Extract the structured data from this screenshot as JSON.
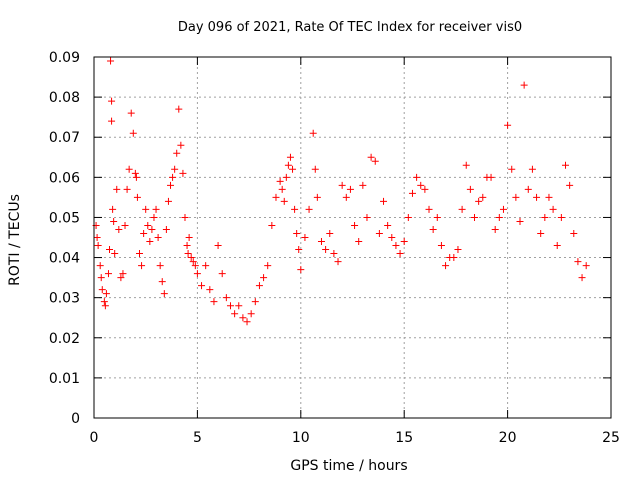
{
  "chart_data": {
    "type": "scatter",
    "title": "Day 096 of 2021, Rate Of TEC Index for receiver vis0",
    "xlabel": "GPS time / hours",
    "ylabel": "ROTI / TECUs",
    "xlim": [
      0,
      24
    ],
    "ylim": [
      0,
      0.09
    ],
    "x_ticks": [
      0,
      5,
      10,
      15,
      20,
      25
    ],
    "x_tick_labels": [
      "0",
      "5",
      "10",
      "15",
      "20",
      "25"
    ],
    "y_ticks": [
      0,
      0.01,
      0.02,
      0.03,
      0.04,
      0.05,
      0.06,
      0.07,
      0.08,
      0.09
    ],
    "y_tick_labels": [
      "0",
      "0.01",
      "0.02",
      "0.03",
      "0.04",
      "0.05",
      "0.06",
      "0.07",
      "0.08",
      "0.09"
    ],
    "grid": true,
    "marker": "+",
    "color": "#ff0000",
    "series": [
      {
        "x": [
          0.1,
          0.15,
          0.2,
          0.3,
          0.35,
          0.4,
          0.5,
          0.55,
          0.6,
          0.7,
          0.75,
          0.8,
          0.85,
          0.85,
          0.9,
          0.95,
          1.0,
          1.1,
          1.2,
          1.3,
          1.4,
          1.5,
          1.6,
          1.7,
          1.8,
          1.9,
          2.0,
          2.05,
          2.1,
          2.2,
          2.3,
          2.4,
          2.5,
          2.6,
          2.7,
          2.8,
          2.9,
          3.0,
          3.1,
          3.2,
          3.3,
          3.4,
          3.5,
          3.6,
          3.7,
          3.8,
          3.9,
          4.0,
          4.1,
          4.2,
          4.3,
          4.4,
          4.5,
          4.55,
          4.6,
          4.7,
          4.8,
          4.9,
          5.0,
          5.2,
          5.4,
          5.6,
          5.8,
          6.0,
          6.2,
          6.4,
          6.6,
          6.8,
          7.0,
          7.2,
          7.4,
          7.6,
          7.8,
          8.0,
          8.2,
          8.4,
          8.6,
          8.8,
          9.0,
          9.1,
          9.2,
          9.3,
          9.4,
          9.5,
          9.6,
          9.7,
          9.8,
          9.9,
          10.0,
          10.2,
          10.4,
          10.6,
          10.7,
          10.8,
          11.0,
          11.2,
          11.4,
          11.6,
          11.8,
          12.0,
          12.2,
          12.4,
          12.6,
          12.8,
          13.0,
          13.2,
          13.4,
          13.6,
          13.8,
          14.0,
          14.2,
          14.4,
          14.6,
          14.8,
          15.0,
          15.2,
          15.4,
          15.6,
          15.8,
          16.0,
          16.2,
          16.4,
          16.6,
          16.8,
          17.0,
          17.2,
          17.4,
          17.6,
          17.8,
          18.0,
          18.2,
          18.4,
          18.6,
          18.8,
          19.0,
          19.2,
          19.4,
          19.6,
          19.8,
          20.0,
          20.2,
          20.4,
          20.6,
          20.8,
          21.0,
          21.2,
          21.4,
          21.6,
          21.8,
          22.0,
          22.2,
          22.4,
          22.6,
          22.8,
          23.0,
          23.2,
          23.4,
          23.6,
          23.8
        ],
        "y": [
          0.048,
          0.045,
          0.043,
          0.038,
          0.035,
          0.032,
          0.029,
          0.028,
          0.031,
          0.036,
          0.042,
          0.089,
          0.079,
          0.074,
          0.052,
          0.049,
          0.041,
          0.057,
          0.047,
          0.035,
          0.036,
          0.048,
          0.057,
          0.062,
          0.076,
          0.071,
          0.061,
          0.06,
          0.055,
          0.041,
          0.038,
          0.046,
          0.052,
          0.048,
          0.044,
          0.047,
          0.05,
          0.052,
          0.045,
          0.038,
          0.034,
          0.031,
          0.047,
          0.054,
          0.058,
          0.06,
          0.062,
          0.066,
          0.077,
          0.068,
          0.061,
          0.05,
          0.043,
          0.041,
          0.045,
          0.04,
          0.039,
          0.038,
          0.036,
          0.033,
          0.038,
          0.032,
          0.029,
          0.043,
          0.036,
          0.03,
          0.028,
          0.026,
          0.028,
          0.025,
          0.024,
          0.026,
          0.029,
          0.033,
          0.035,
          0.038,
          0.048,
          0.055,
          0.059,
          0.057,
          0.054,
          0.06,
          0.063,
          0.065,
          0.062,
          0.052,
          0.046,
          0.042,
          0.037,
          0.045,
          0.052,
          0.071,
          0.062,
          0.055,
          0.044,
          0.042,
          0.046,
          0.041,
          0.039,
          0.058,
          0.055,
          0.057,
          0.048,
          0.044,
          0.058,
          0.05,
          0.065,
          0.064,
          0.046,
          0.054,
          0.048,
          0.045,
          0.043,
          0.041,
          0.044,
          0.05,
          0.056,
          0.06,
          0.058,
          0.057,
          0.052,
          0.047,
          0.05,
          0.043,
          0.038,
          0.04,
          0.04,
          0.042,
          0.052,
          0.063,
          0.057,
          0.05,
          0.054,
          0.055,
          0.06,
          0.06,
          0.047,
          0.05,
          0.052,
          0.073,
          0.062,
          0.055,
          0.049,
          0.083,
          0.057,
          0.062,
          0.055,
          0.046,
          0.05,
          0.055,
          0.052,
          0.043,
          0.05,
          0.063,
          0.058,
          0.046,
          0.039,
          0.035,
          0.038
        ]
      }
    ]
  }
}
